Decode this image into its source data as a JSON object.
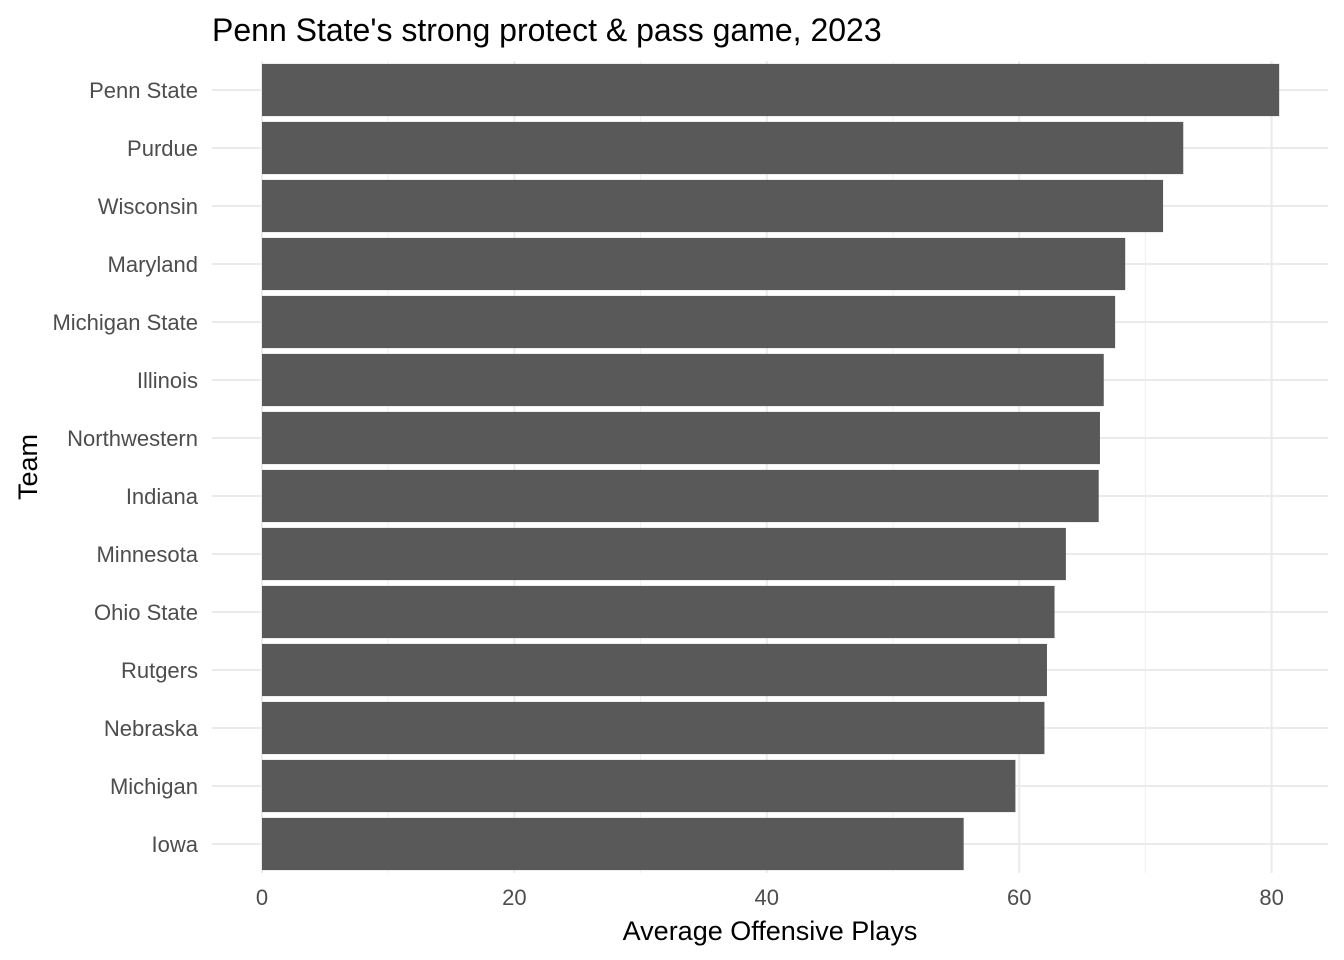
{
  "chart_data": {
    "type": "bar",
    "orientation": "horizontal",
    "title": "Penn State's strong protect & pass game, 2023",
    "xlabel": "Average Offensive Plays",
    "ylabel": "Team",
    "categories": [
      "Penn State",
      "Purdue",
      "Wisconsin",
      "Maryland",
      "Michigan State",
      "Illinois",
      "Northwestern",
      "Indiana",
      "Minnesota",
      "Ohio State",
      "Rutgers",
      "Nebraska",
      "Michigan",
      "Iowa"
    ],
    "values": [
      80.6,
      73.0,
      71.4,
      68.4,
      67.6,
      66.7,
      66.4,
      66.3,
      63.7,
      62.8,
      62.2,
      62.0,
      59.7,
      55.6
    ],
    "xlim": [
      0,
      82
    ],
    "xticks": [
      0,
      20,
      40,
      60,
      80
    ],
    "bar_color": "#595959",
    "grid": true,
    "legend": "none"
  }
}
